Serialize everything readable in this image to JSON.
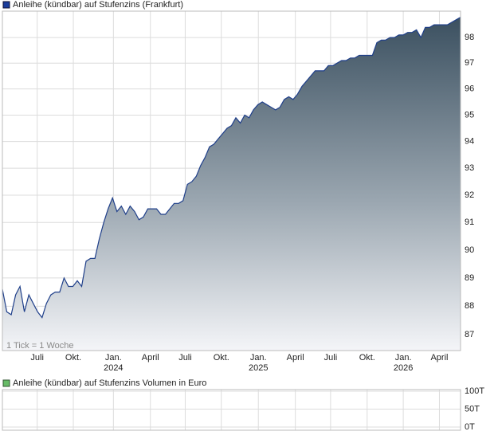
{
  "chart_data": {
    "type": "line",
    "log": true,
    "title": "Anleihe (kündbar) auf Stufenzins (Frankfurt)",
    "note": "1 Tick = 1 Woche",
    "series": [
      {
        "name": "Anleihe (kündbar) auf Stufenzins (Frankfurt)",
        "color": "#1f3f8a",
        "values": [
          88.6,
          87.8,
          87.7,
          88.4,
          88.7,
          87.8,
          88.4,
          88.1,
          87.8,
          87.6,
          88.1,
          88.4,
          88.5,
          88.5,
          89.0,
          88.7,
          88.7,
          88.9,
          88.7,
          89.6,
          89.7,
          89.7,
          90.4,
          91.0,
          91.5,
          91.9,
          91.4,
          91.6,
          91.3,
          91.6,
          91.4,
          91.1,
          91.2,
          91.5,
          91.5,
          91.5,
          91.3,
          91.3,
          91.5,
          91.7,
          91.7,
          91.8,
          92.4,
          92.5,
          92.7,
          93.1,
          93.4,
          93.8,
          93.9,
          94.1,
          94.3,
          94.5,
          94.6,
          94.9,
          94.7,
          95.0,
          94.9,
          95.2,
          95.4,
          95.5,
          95.4,
          95.3,
          95.2,
          95.3,
          95.6,
          95.7,
          95.6,
          95.8,
          96.1,
          96.3,
          96.5,
          96.7,
          96.7,
          96.7,
          96.9,
          96.9,
          97.0,
          97.1,
          97.1,
          97.2,
          97.2,
          97.3,
          97.3,
          97.3,
          97.3,
          97.8,
          97.9,
          97.9,
          98.0,
          98.0,
          98.1,
          98.1,
          98.2,
          98.2,
          98.3,
          98.0,
          98.4,
          98.4,
          98.5,
          98.5,
          98.5,
          98.5,
          98.6,
          98.7,
          98.8
        ]
      }
    ],
    "ylim": [
      86.45,
      99.04
    ],
    "yticks": [
      87,
      88,
      89,
      90,
      91,
      92,
      93,
      94,
      95,
      96,
      97,
      98
    ],
    "xticks": [
      {
        "value": 7.9,
        "label": "Juli"
      },
      {
        "value": 16.1,
        "label": "Okt."
      },
      {
        "value": 25.2,
        "label": "Jan.",
        "year": "2024"
      },
      {
        "value": 33.6,
        "label": "April"
      },
      {
        "value": 41.5,
        "label": "Juli"
      },
      {
        "value": 49.7,
        "label": "Okt."
      },
      {
        "value": 58.1,
        "label": "Jan.",
        "year": "2025"
      },
      {
        "value": 66.5,
        "label": "April"
      },
      {
        "value": 74.5,
        "label": "Juli"
      },
      {
        "value": 82.8,
        "label": "Okt."
      },
      {
        "value": 91.0,
        "label": "Jan.",
        "year": "2026"
      },
      {
        "value": 99.2,
        "label": "April"
      }
    ],
    "grid": true,
    "volume": {
      "title": "Anleihe (kündbar) auf Stufenzins Volumen in Euro",
      "color": "#66bb66",
      "ylim": [
        0,
        100000
      ],
      "yticks": [
        {
          "value": 0,
          "label": "0T"
        },
        {
          "value": 50000,
          "label": "50T"
        },
        {
          "value": 100000,
          "label": "100T"
        }
      ]
    }
  }
}
